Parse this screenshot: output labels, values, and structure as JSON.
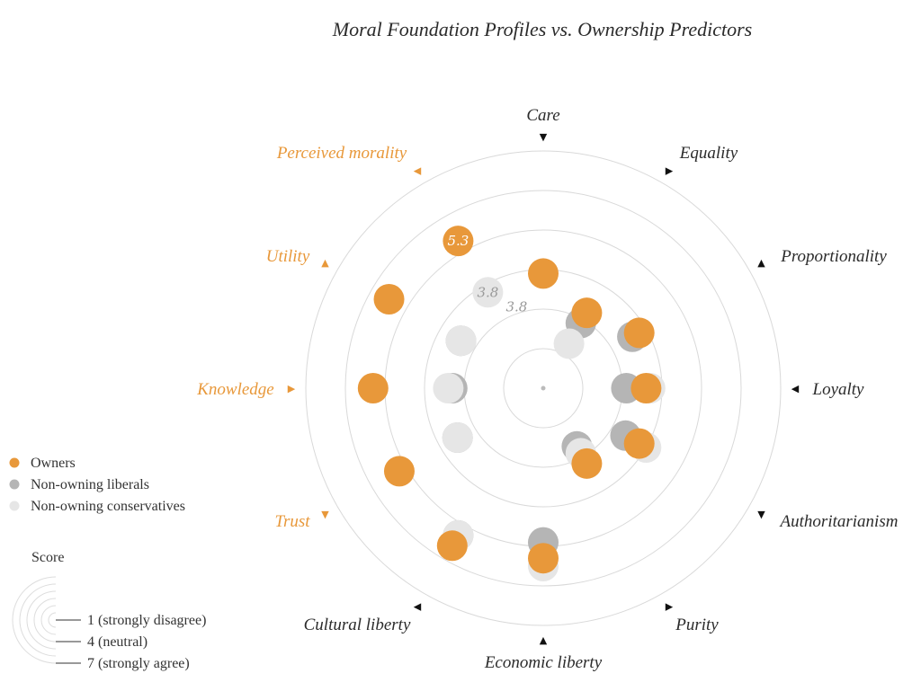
{
  "chart_data": {
    "type": "scatter",
    "subtype": "radial",
    "title": "Moral Foundation Profiles vs. Ownership Predictors",
    "axes": [
      {
        "name": "Care",
        "highlight": false
      },
      {
        "name": "Equality",
        "highlight": false
      },
      {
        "name": "Proportionality",
        "highlight": false
      },
      {
        "name": "Loyalty",
        "highlight": false
      },
      {
        "name": "Authoritarianism",
        "highlight": false
      },
      {
        "name": "Purity",
        "highlight": false
      },
      {
        "name": "Economic liberty",
        "highlight": false
      },
      {
        "name": "Cultural liberty",
        "highlight": false
      },
      {
        "name": "Trust",
        "highlight": true
      },
      {
        "name": "Knowledge",
        "highlight": true
      },
      {
        "name": "Utility",
        "highlight": true
      },
      {
        "name": "Perceived morality",
        "highlight": true
      }
    ],
    "score_range": [
      1,
      7
    ],
    "rings": [
      2,
      3,
      4,
      5,
      6,
      7
    ],
    "series": [
      {
        "name": "Non-owning liberals",
        "color": "#b5b5b5",
        "values": [
          null,
          2.9,
          3.6,
          3.1,
          3.4,
          2.7,
          4.9,
          5.3,
          3.5,
          3.3,
          3.4,
          null
        ]
      },
      {
        "name": "Non-owning conservatives",
        "color": "#e6e6e6",
        "values": [
          null,
          2.3,
          null,
          3.7,
          4.0,
          2.9,
          5.5,
          5.3,
          3.5,
          3.4,
          3.4,
          3.8
        ]
      },
      {
        "name": "Owners",
        "color": "#e8983a",
        "values": [
          3.9,
          3.2,
          3.8,
          3.6,
          3.8,
          3.2,
          5.3,
          5.6,
          5.2,
          5.3,
          5.5,
          5.3
        ]
      }
    ],
    "annotations": [
      {
        "text": "5.3",
        "series": "Owners",
        "axis": "Perceived morality"
      },
      {
        "text": "3.8",
        "series": "Non-owning conservatives",
        "axis": "Perceived morality"
      },
      {
        "text": "3.8",
        "series": "Non-owning conservatives",
        "axis": "Perceived morality",
        "outside": true
      }
    ],
    "legend": {
      "placement": "bottom-left",
      "items": [
        "Owners",
        "Non-owning liberals",
        "Non-owning conservatives"
      ],
      "score_title": "Score",
      "score_items": [
        "1 (strongly disagree)",
        "4 (neutral)",
        "7 (strongly agree)"
      ]
    },
    "colors": {
      "highlight_label": "#e8983a",
      "label": "#2b2b2b",
      "ring": "#d9d9d9"
    }
  }
}
